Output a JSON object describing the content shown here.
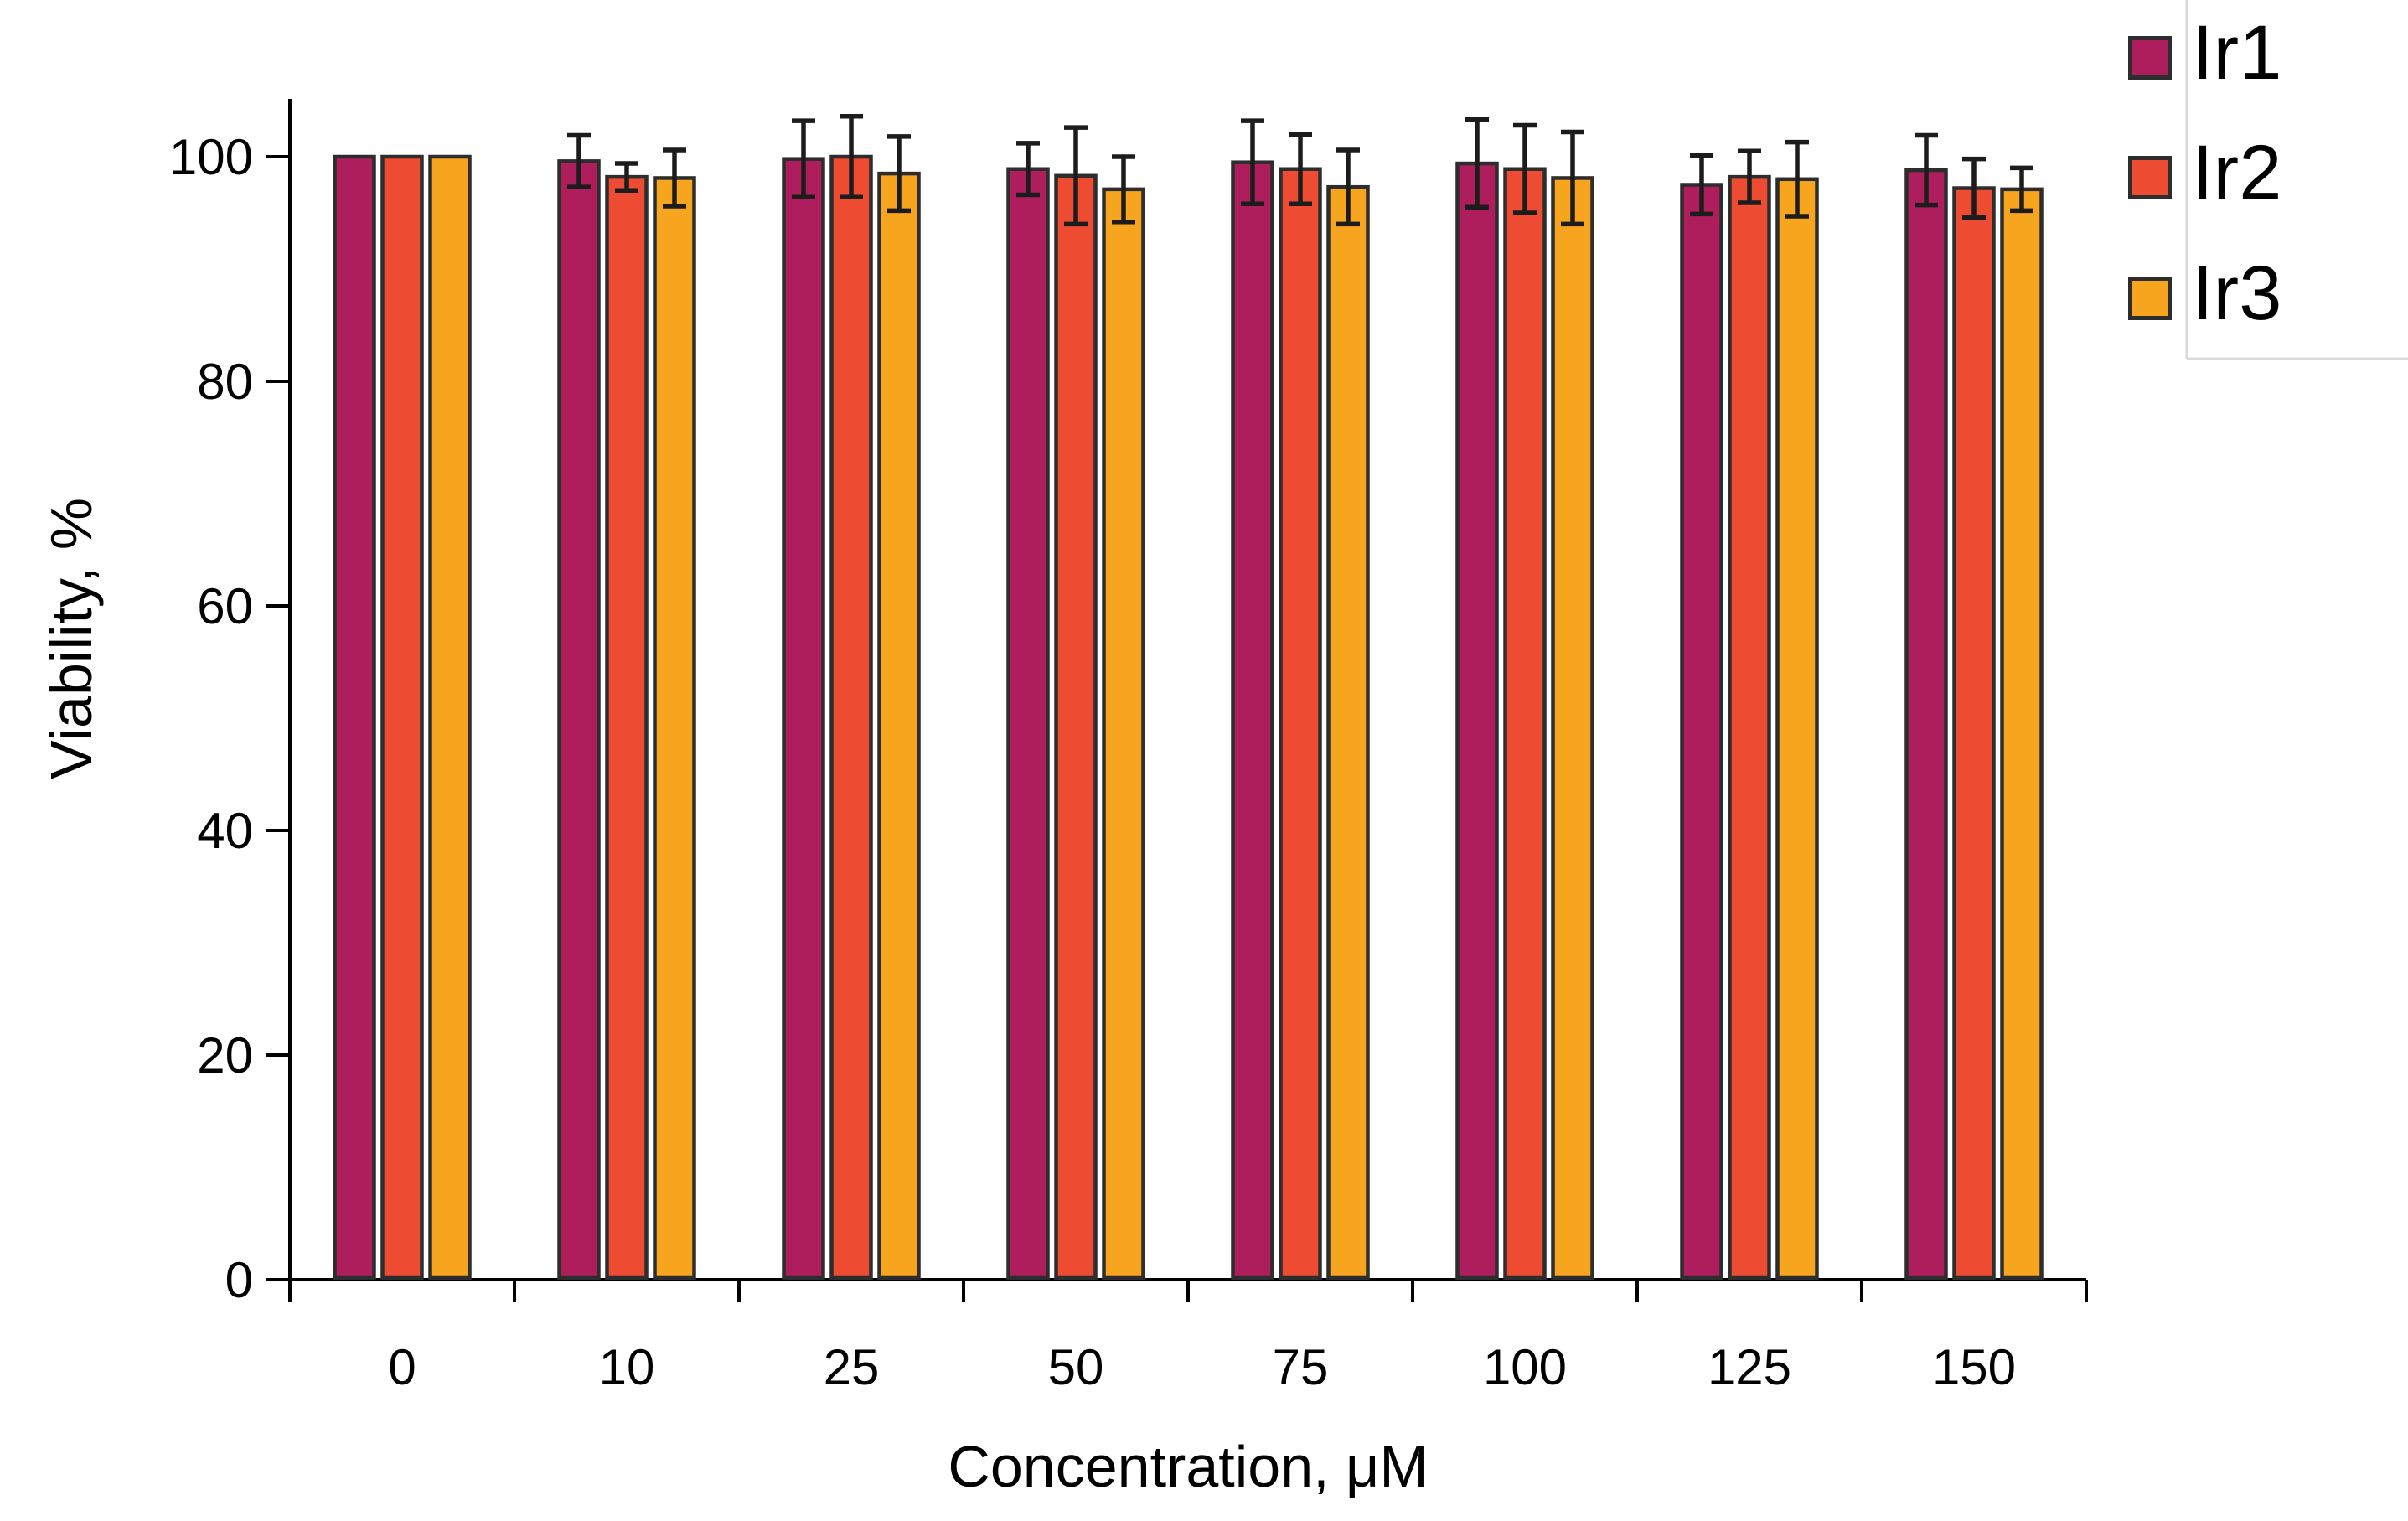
{
  "chart_data": {
    "type": "bar",
    "title": "",
    "xlabel": "Concentration, μM",
    "ylabel": "Viability, %",
    "categories": [
      "0",
      "10",
      "25",
      "50",
      "75",
      "100",
      "125",
      "150"
    ],
    "y_ticks": [
      0,
      20,
      40,
      60,
      80,
      100
    ],
    "y_tick_labels": [
      "0",
      "20",
      "40",
      "60",
      "80",
      "100"
    ],
    "ylim": [
      0,
      105
    ],
    "grid": false,
    "legend_position": "top-right",
    "bar_outline_color": "#2d2d2d",
    "error_bar_color": "#1c1c1c",
    "axis_color": "#000000",
    "series": [
      {
        "name": "Ir1",
        "color": "#AE1E5C",
        "values": [
          100,
          99.6,
          99.8,
          98.9,
          99.5,
          99.4,
          97.5,
          98.8
        ],
        "errors": [
          0,
          2.3,
          3.4,
          2.3,
          3.7,
          3.9,
          2.6,
          3.1
        ]
      },
      {
        "name": "Ir2",
        "color": "#EE4B33",
        "values": [
          100,
          98.2,
          100.0,
          98.3,
          98.9,
          98.9,
          98.2,
          97.2
        ],
        "errors": [
          0,
          1.2,
          3.6,
          4.3,
          3.1,
          3.9,
          2.3,
          2.6
        ]
      },
      {
        "name": "Ir3",
        "color": "#F7A41E",
        "values": [
          100,
          98.1,
          98.5,
          97.1,
          97.3,
          98.1,
          98.0,
          97.1
        ],
        "errors": [
          0,
          2.5,
          3.3,
          2.9,
          3.3,
          4.1,
          3.3,
          1.9
        ]
      }
    ],
    "legend_box_border_color": "#d9d9d9"
  }
}
